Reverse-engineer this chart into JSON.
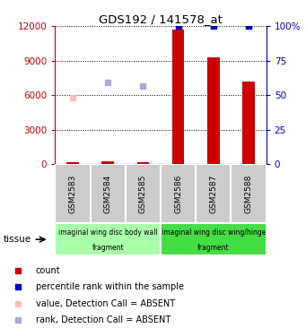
{
  "title": "GDS192 / 141578_at",
  "samples": [
    "GSM2583",
    "GSM2584",
    "GSM2585",
    "GSM2586",
    "GSM2587",
    "GSM2588"
  ],
  "count_values": [
    120,
    250,
    180,
    11700,
    9300,
    7200
  ],
  "percentile_present": [
    null,
    null,
    null,
    100,
    100,
    100
  ],
  "value_absent": [
    5750,
    null,
    null,
    null,
    null,
    null
  ],
  "rank_absent": [
    null,
    7100,
    6800,
    null,
    null,
    null
  ],
  "ylim_left": [
    0,
    12000
  ],
  "ylim_right": [
    0,
    100
  ],
  "yticks_left": [
    0,
    3000,
    6000,
    9000,
    12000
  ],
  "yticks_right": [
    0,
    25,
    50,
    75,
    100
  ],
  "yticklabels_right": [
    "0",
    "25",
    "50",
    "75",
    "100%"
  ],
  "left_color": "#cc0000",
  "right_color": "#0000cc",
  "bar_color": "#cc0000",
  "blue_square_color": "#0000cc",
  "pink_square_color": "#ffbbbb",
  "light_blue_square_color": "#aaaadd",
  "tissue_group1_color": "#aaffaa",
  "tissue_group2_color": "#44dd44",
  "legend_items": [
    {
      "color": "#cc0000",
      "label": "count"
    },
    {
      "color": "#0000cc",
      "label": "percentile rank within the sample"
    },
    {
      "color": "#ffbbbb",
      "label": "value, Detection Call = ABSENT"
    },
    {
      "color": "#aaaadd",
      "label": "rank, Detection Call = ABSENT"
    }
  ]
}
